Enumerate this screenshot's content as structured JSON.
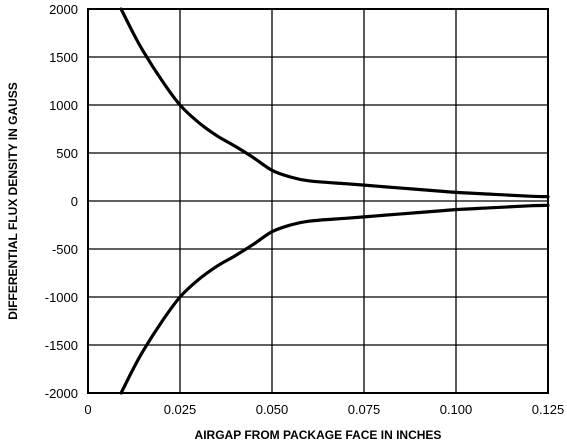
{
  "chart_data": {
    "type": "line",
    "title": "",
    "xlabel": "AIRGAP FROM PACKAGE FACE IN INCHES",
    "ylabel": "DIFFERENTIAL FLUX DENSITY IN GAUSS",
    "xlim": [
      0,
      0.125
    ],
    "ylim": [
      -2000,
      2000
    ],
    "x_ticks": [
      "0",
      "0.025",
      "0.050",
      "0.075",
      "0.100",
      "0.125"
    ],
    "y_ticks": [
      "2000",
      "1500",
      "1000",
      "500",
      "0",
      "-500",
      "-1000",
      "-1500",
      "-2000"
    ],
    "grid": true,
    "line_color": "#000000",
    "series": [
      {
        "x": [
          0.009,
          0.012,
          0.015,
          0.02,
          0.025,
          0.03,
          0.035,
          0.04,
          0.045,
          0.05,
          0.055,
          0.06,
          0.07,
          0.08,
          0.09,
          0.1,
          0.11,
          0.12,
          0.125
        ],
        "values": [
          2000,
          1770,
          1560,
          1260,
          1000,
          820,
          680,
          570,
          450,
          320,
          250,
          210,
          180,
          150,
          120,
          90,
          70,
          50,
          45
        ]
      },
      {
        "x": [
          0.009,
          0.012,
          0.015,
          0.02,
          0.025,
          0.03,
          0.035,
          0.04,
          0.045,
          0.05,
          0.055,
          0.06,
          0.07,
          0.08,
          0.09,
          0.1,
          0.11,
          0.12,
          0.125
        ],
        "values": [
          -2000,
          -1770,
          -1560,
          -1260,
          -1000,
          -820,
          -680,
          -570,
          -450,
          -320,
          -250,
          -210,
          -180,
          -150,
          -120,
          -90,
          -70,
          -50,
          -45
        ]
      }
    ]
  }
}
